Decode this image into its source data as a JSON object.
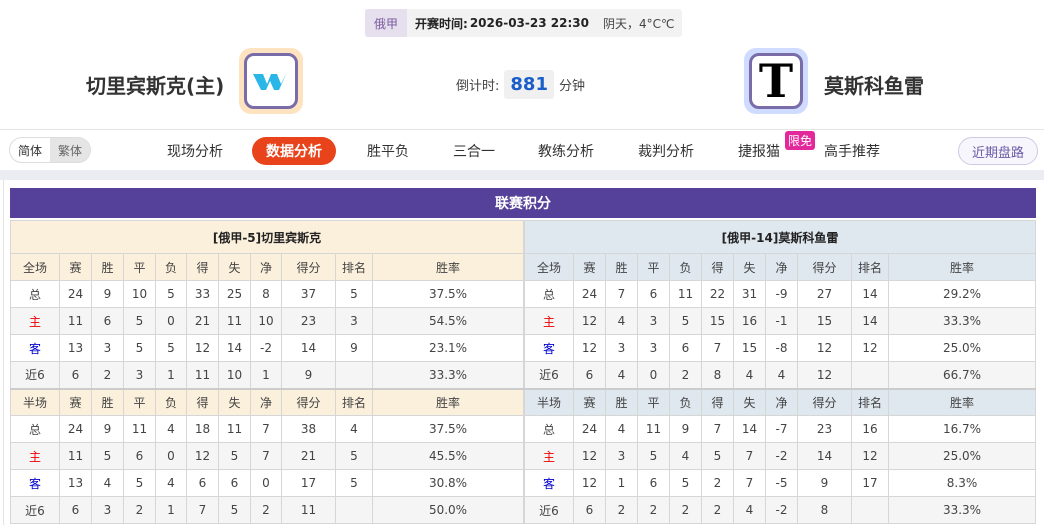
{
  "match": {
    "league": "俄甲",
    "kickoff_label": "开赛时间:",
    "kickoff": "2026-03-23 22:30",
    "weather": "阴天，4°C℃",
    "home": "切里宾斯克(主)",
    "away": "莫斯科鱼雷",
    "countdown_label": "倒计时:",
    "countdown": "881",
    "countdown_unit": "分钟",
    "away_logo_letter": "T"
  },
  "lang": {
    "simplified": "简体",
    "traditional": "繁体"
  },
  "nav": [
    "现场分析",
    "数据分析",
    "胜平负",
    "三合一",
    "教练分析",
    "裁判分析",
    "捷报猫",
    "高手推荐"
  ],
  "nav_badge": "限免",
  "recent_button": "近期盘路",
  "colors": {
    "accent": "#e8431b",
    "title_bar": "#55409a"
  },
  "standings": {
    "title": "联赛积分",
    "columns_full": [
      "全场",
      "赛",
      "胜",
      "平",
      "负",
      "得",
      "失",
      "净",
      "得分",
      "排名",
      "胜率"
    ],
    "columns_half": [
      "半场",
      "赛",
      "胜",
      "平",
      "负",
      "得",
      "失",
      "净",
      "得分",
      "排名",
      "胜率"
    ],
    "home": {
      "caption": "[俄甲-5]切里宾斯克",
      "full": [
        [
          "总",
          "24",
          "9",
          "10",
          "5",
          "33",
          "25",
          "8",
          "37",
          "5",
          "37.5%"
        ],
        [
          "主",
          "11",
          "6",
          "5",
          "0",
          "21",
          "11",
          "10",
          "23",
          "3",
          "54.5%"
        ],
        [
          "客",
          "13",
          "3",
          "5",
          "5",
          "12",
          "14",
          "-2",
          "14",
          "9",
          "23.1%"
        ],
        [
          "近6",
          "6",
          "2",
          "3",
          "1",
          "11",
          "10",
          "1",
          "9",
          "",
          "33.3%"
        ]
      ],
      "half": [
        [
          "总",
          "24",
          "9",
          "11",
          "4",
          "18",
          "11",
          "7",
          "38",
          "4",
          "37.5%"
        ],
        [
          "主",
          "11",
          "5",
          "6",
          "0",
          "12",
          "5",
          "7",
          "21",
          "5",
          "45.5%"
        ],
        [
          "客",
          "13",
          "4",
          "5",
          "4",
          "6",
          "6",
          "0",
          "17",
          "5",
          "30.8%"
        ],
        [
          "近6",
          "6",
          "3",
          "2",
          "1",
          "7",
          "5",
          "2",
          "11",
          "",
          "50.0%"
        ]
      ]
    },
    "away": {
      "caption": "[俄甲-14]莫斯科鱼雷",
      "full": [
        [
          "总",
          "24",
          "7",
          "6",
          "11",
          "22",
          "31",
          "-9",
          "27",
          "14",
          "29.2%"
        ],
        [
          "主",
          "12",
          "4",
          "3",
          "5",
          "15",
          "16",
          "-1",
          "15",
          "14",
          "33.3%"
        ],
        [
          "客",
          "12",
          "3",
          "3",
          "6",
          "7",
          "15",
          "-8",
          "12",
          "12",
          "25.0%"
        ],
        [
          "近6",
          "6",
          "4",
          "0",
          "2",
          "8",
          "4",
          "4",
          "12",
          "",
          "66.7%"
        ]
      ],
      "half": [
        [
          "总",
          "24",
          "4",
          "11",
          "9",
          "7",
          "14",
          "-7",
          "23",
          "16",
          "16.7%"
        ],
        [
          "主",
          "12",
          "3",
          "5",
          "4",
          "5",
          "7",
          "-2",
          "14",
          "12",
          "25.0%"
        ],
        [
          "客",
          "12",
          "1",
          "6",
          "5",
          "2",
          "7",
          "-5",
          "9",
          "17",
          "8.3%"
        ],
        [
          "近6",
          "6",
          "2",
          "2",
          "2",
          "2",
          "4",
          "-2",
          "8",
          "",
          "33.3%"
        ]
      ]
    }
  }
}
